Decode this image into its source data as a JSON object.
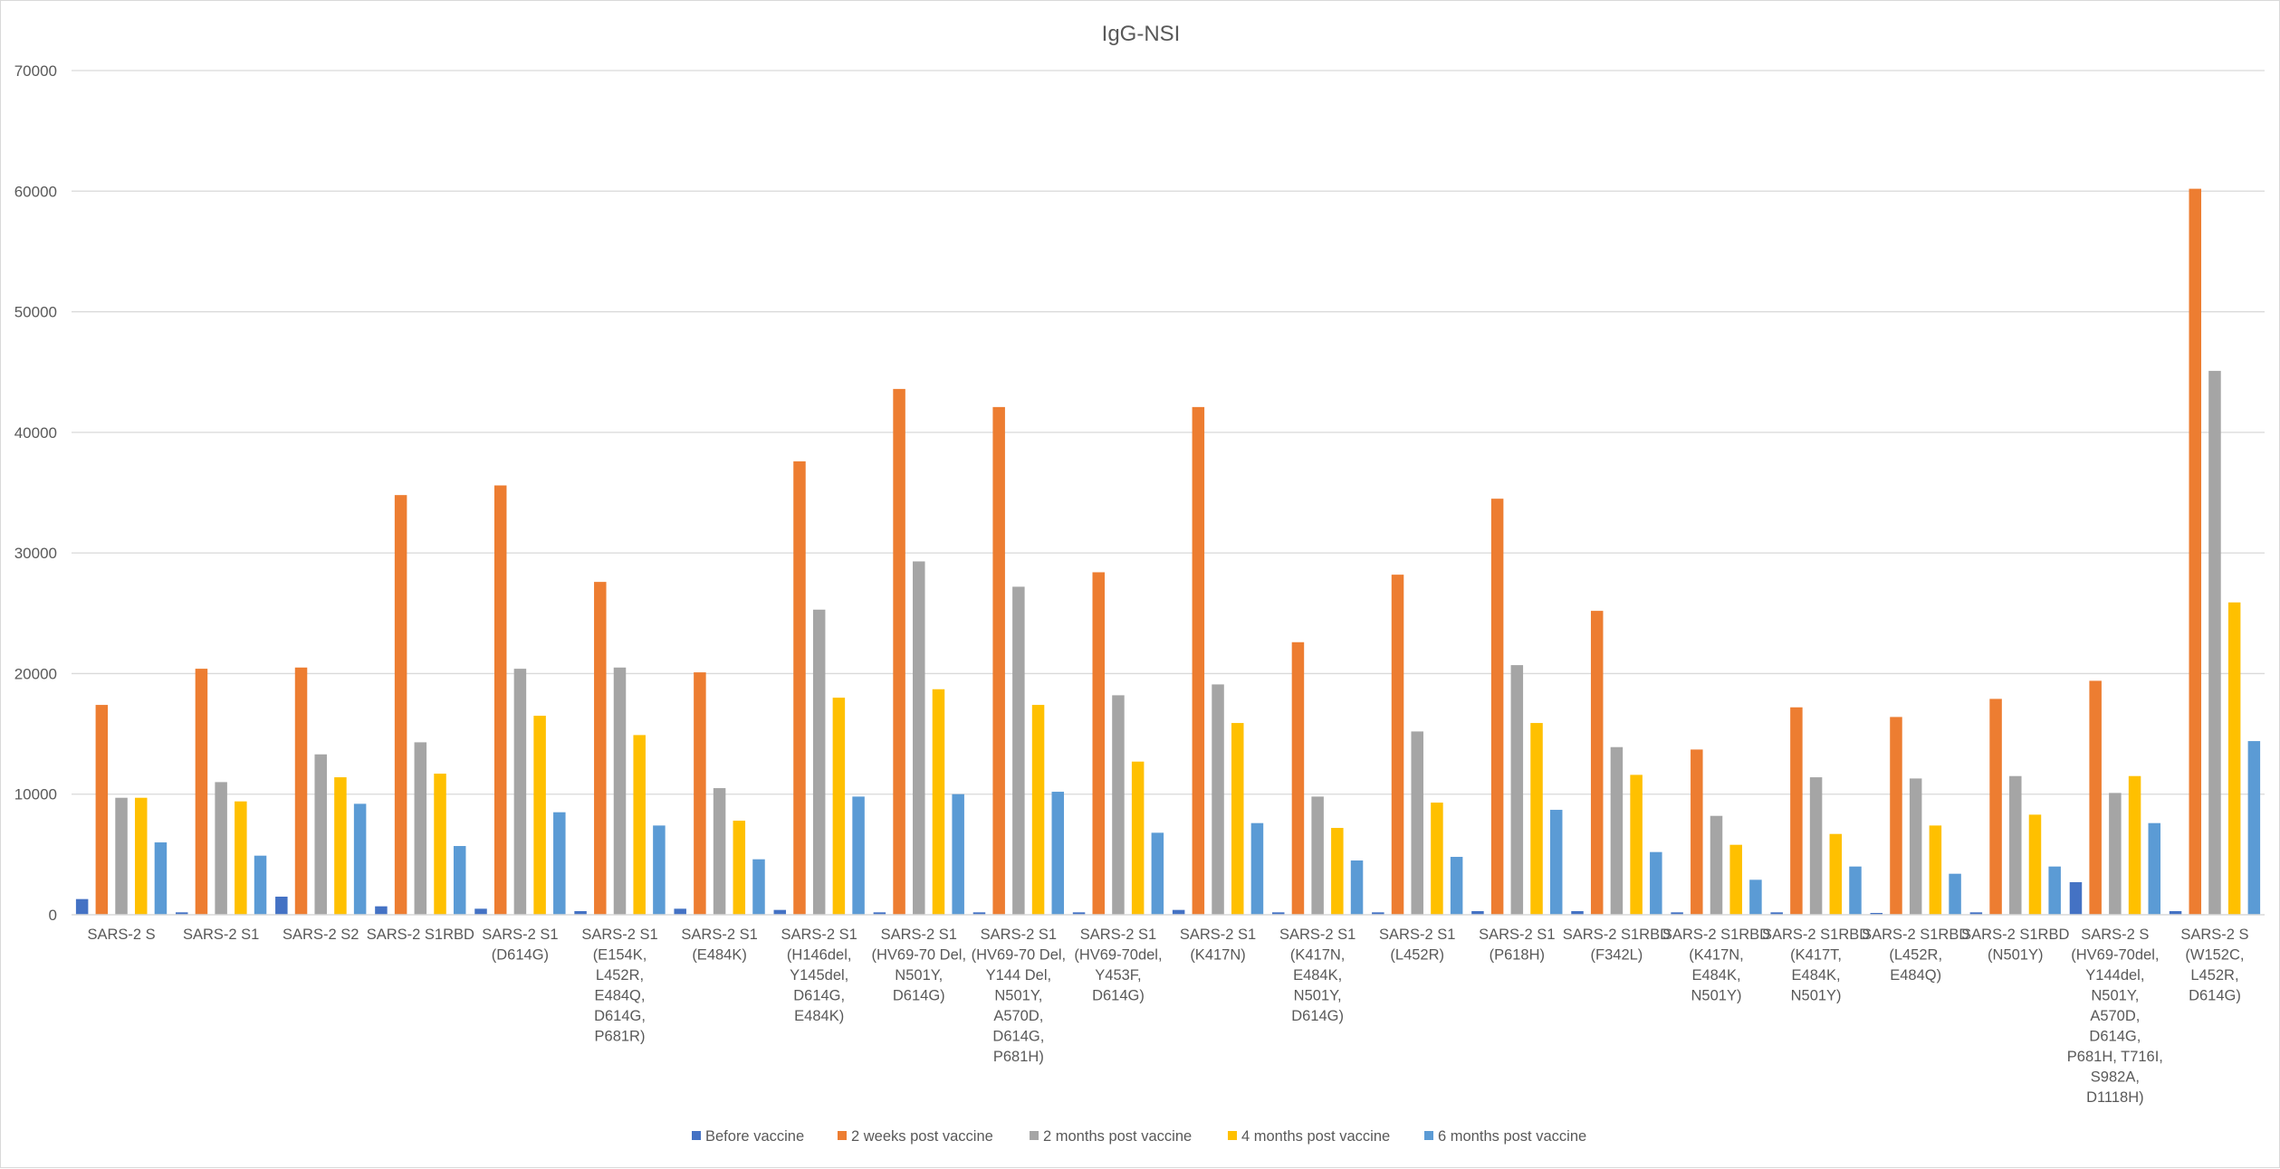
{
  "chart_data": {
    "type": "bar",
    "title": "IgG-NSI",
    "xlabel": "",
    "ylabel": "",
    "ylim": [
      0,
      70000
    ],
    "yticks": [
      0,
      10000,
      20000,
      30000,
      40000,
      50000,
      60000,
      70000
    ],
    "ytick_labels": [
      "0",
      "10000",
      "20000",
      "30000",
      "40000",
      "50000",
      "60000",
      "70000"
    ],
    "grid": true,
    "legend_position": "bottom",
    "categories": [
      [
        "SARS-2 S"
      ],
      [
        "SARS-2 S1"
      ],
      [
        "SARS-2 S2"
      ],
      [
        "SARS-2 S1RBD"
      ],
      [
        "SARS-2 S1",
        "(D614G)"
      ],
      [
        "SARS-2 S1",
        "(E154K,",
        "L452R,",
        "E484Q,",
        "D614G,",
        "P681R)"
      ],
      [
        "SARS-2 S1",
        "(E484K)"
      ],
      [
        "SARS-2 S1",
        "(H146del,",
        "Y145del,",
        "D614G,",
        "E484K)"
      ],
      [
        "SARS-2 S1",
        "(HV69-70 Del,",
        "N501Y,",
        "D614G)"
      ],
      [
        "SARS-2 S1",
        "(HV69-70 Del,",
        "Y144 Del,",
        "N501Y,",
        "A570D,",
        "D614G,",
        "P681H)"
      ],
      [
        "SARS-2 S1",
        "(HV69-70del,",
        "Y453F,",
        "D614G)"
      ],
      [
        "SARS-2 S1",
        "(K417N)"
      ],
      [
        "SARS-2 S1",
        "(K417N,",
        "E484K,",
        "N501Y,",
        "D614G)"
      ],
      [
        "SARS-2 S1",
        "(L452R)"
      ],
      [
        "SARS-2 S1",
        "(P618H)"
      ],
      [
        "SARS-2 S1RBD",
        "(F342L)"
      ],
      [
        "SARS-2 S1RBD",
        "(K417N,",
        "E484K,",
        "N501Y)"
      ],
      [
        "SARS-2 S1RBD",
        "(K417T,",
        "E484K,",
        "N501Y)"
      ],
      [
        "SARS-2 S1RBD",
        "(L452R,",
        "E484Q)"
      ],
      [
        "SARS-2 S1RBD",
        "(N501Y)"
      ],
      [
        "SARS-2 S",
        "(HV69-70del,",
        "Y144del,",
        "N501Y,",
        "A570D,",
        "D614G,",
        "P681H, T716I,",
        "S982A,",
        "D1118H)"
      ],
      [
        "SARS-2 S",
        "(W152C,",
        "L452R,",
        "D614G)"
      ]
    ],
    "series": [
      {
        "name": "Before vaccine",
        "color": "#4472C4",
        "values": [
          1300,
          200,
          1500,
          700,
          500,
          300,
          500,
          400,
          200,
          200,
          200,
          400,
          200,
          200,
          300,
          300,
          200,
          200,
          150,
          200,
          2700,
          300
        ]
      },
      {
        "name": "2 weeks post vaccine",
        "color": "#ED7D31",
        "values": [
          17400,
          20400,
          20500,
          34800,
          35600,
          27600,
          20100,
          37600,
          43600,
          42100,
          28400,
          42100,
          22600,
          28200,
          34500,
          25200,
          13700,
          17200,
          16400,
          17900,
          19400,
          60200
        ]
      },
      {
        "name": "2 months post vaccine",
        "color": "#A5A5A5",
        "values": [
          9700,
          11000,
          13300,
          14300,
          20400,
          20500,
          10500,
          25300,
          29300,
          27200,
          18200,
          19100,
          9800,
          15200,
          20700,
          13900,
          8200,
          11400,
          11300,
          11500,
          10100,
          45100
        ]
      },
      {
        "name": "4 months post vaccine",
        "color": "#FFC000",
        "values": [
          9700,
          9400,
          11400,
          11700,
          16500,
          14900,
          7800,
          18000,
          18700,
          17400,
          12700,
          15900,
          7200,
          9300,
          15900,
          11600,
          5800,
          6700,
          7400,
          8300,
          11500,
          25900
        ]
      },
      {
        "name": "6 months post vaccine",
        "color": "#5B9BD5",
        "values": [
          6000,
          4900,
          9200,
          5700,
          8500,
          7400,
          4600,
          9800,
          10000,
          10200,
          6800,
          7600,
          4500,
          4800,
          8700,
          5200,
          2900,
          4000,
          3400,
          4000,
          7600,
          14400
        ]
      }
    ]
  }
}
